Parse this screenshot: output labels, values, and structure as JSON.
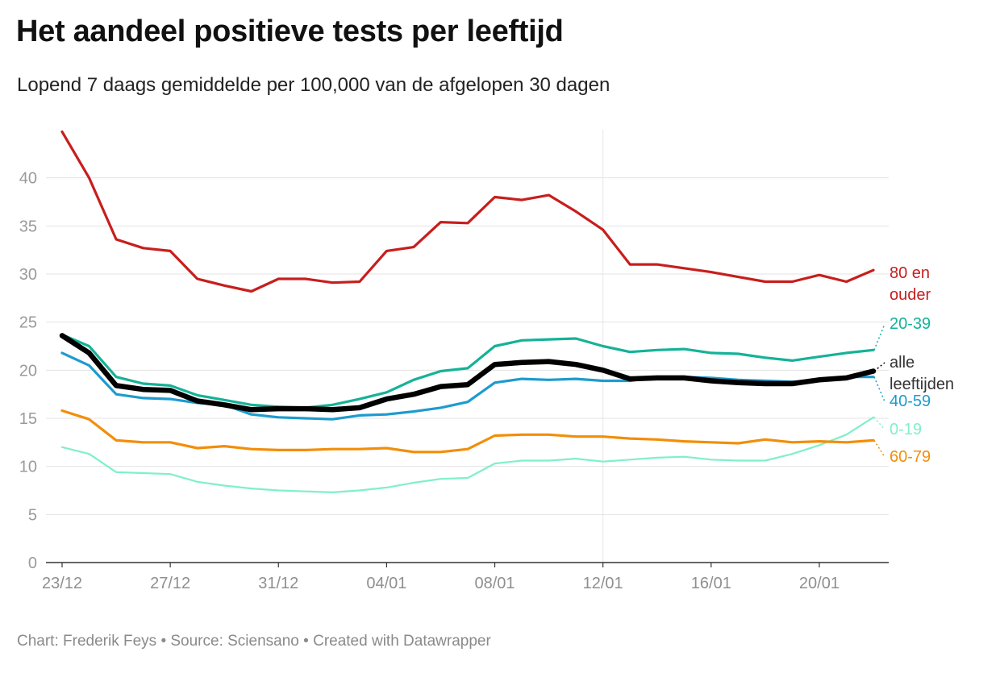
{
  "title": "Het aandeel positieve tests per leeftijd",
  "subtitle": "Lopend 7 daags gemiddelde per 100,000 van de afgelopen 30 dagen",
  "footer": {
    "chart_credit": "Chart: Frederik Feys",
    "source": "Source: Sciensano",
    "created_with": "Created with Datawrapper",
    "separator": "•"
  },
  "chart_data": {
    "type": "line",
    "title": "Het aandeel positieve tests per leeftijd",
    "subtitle": "Lopend 7 daags gemiddelde per 100,000 van de afgelopen 30 dagen",
    "xlabel": "",
    "ylabel": "",
    "ylim": [
      0,
      45
    ],
    "yticks": [
      0,
      5,
      10,
      15,
      20,
      25,
      30,
      35,
      40
    ],
    "grid": true,
    "x_tick_labels": [
      "23/12",
      "27/12",
      "31/12",
      "04/01",
      "08/01",
      "12/01",
      "16/01",
      "20/01"
    ],
    "x_tick_indices": [
      0,
      4,
      8,
      12,
      16,
      20,
      24,
      28
    ],
    "highlight_x_index": 20,
    "x": [
      "23/12",
      "24/12",
      "25/12",
      "26/12",
      "27/12",
      "28/12",
      "29/12",
      "30/12",
      "31/12",
      "01/01",
      "02/01",
      "03/01",
      "04/01",
      "05/01",
      "06/01",
      "07/01",
      "08/01",
      "09/01",
      "10/01",
      "11/01",
      "12/01",
      "13/01",
      "14/01",
      "15/01",
      "16/01",
      "17/01",
      "18/01",
      "19/01",
      "20/01",
      "21/01",
      "22/01"
    ],
    "series": [
      {
        "name": "80 en ouder",
        "color": "#c71e1d",
        "width": 3.2,
        "label_lines": [
          "80 en",
          "ouder"
        ],
        "values": [
          44.8,
          40.0,
          33.6,
          32.7,
          32.4,
          29.5,
          28.8,
          28.2,
          29.5,
          29.5,
          29.1,
          29.2,
          32.4,
          32.8,
          35.4,
          35.3,
          38.0,
          37.7,
          38.2,
          36.5,
          34.6,
          31.0,
          31.0,
          30.6,
          30.2,
          29.7,
          29.2,
          29.2,
          29.9,
          29.2,
          30.4
        ]
      },
      {
        "name": "20-39",
        "color": "#15b298",
        "width": 3.2,
        "label_lines": [
          "20-39"
        ],
        "values": [
          23.7,
          22.5,
          19.3,
          18.6,
          18.4,
          17.4,
          16.9,
          16.4,
          16.2,
          16.1,
          16.4,
          17.0,
          17.7,
          19.0,
          19.9,
          20.2,
          22.5,
          23.1,
          23.2,
          23.3,
          22.5,
          21.9,
          22.1,
          22.2,
          21.8,
          21.7,
          21.3,
          21.0,
          21.4,
          21.8,
          22.1
        ]
      },
      {
        "name": "alle leeftijden",
        "color": "#000000",
        "width": 6.5,
        "label_lines": [
          "alle",
          "leeftijden"
        ],
        "values": [
          23.6,
          21.8,
          18.4,
          18.0,
          17.9,
          16.8,
          16.4,
          15.9,
          16.0,
          16.0,
          15.9,
          16.1,
          17.0,
          17.5,
          18.3,
          18.5,
          20.6,
          20.8,
          20.9,
          20.6,
          20.0,
          19.1,
          19.2,
          19.2,
          18.9,
          18.7,
          18.6,
          18.6,
          19.0,
          19.2,
          19.9
        ]
      },
      {
        "name": "40-59",
        "color": "#1d9bce",
        "width": 3.2,
        "label_lines": [
          "40-59"
        ],
        "values": [
          21.8,
          20.5,
          17.5,
          17.1,
          17.0,
          16.6,
          16.4,
          15.4,
          15.1,
          15.0,
          14.9,
          15.3,
          15.4,
          15.7,
          16.1,
          16.7,
          18.7,
          19.1,
          19.0,
          19.1,
          18.9,
          18.9,
          19.3,
          19.3,
          19.2,
          19.0,
          18.9,
          18.8,
          18.9,
          19.3,
          19.3
        ]
      },
      {
        "name": "0-19",
        "color": "#7ff0c9",
        "width": 2.2,
        "label_lines": [
          "0-19"
        ],
        "values": [
          12.0,
          11.3,
          9.4,
          9.3,
          9.2,
          8.4,
          8.0,
          7.7,
          7.5,
          7.4,
          7.3,
          7.5,
          7.8,
          8.3,
          8.7,
          8.8,
          10.3,
          10.6,
          10.6,
          10.8,
          10.5,
          10.7,
          10.9,
          11.0,
          10.7,
          10.6,
          10.6,
          11.3,
          12.2,
          13.3,
          15.1
        ]
      },
      {
        "name": "60-79",
        "color": "#f28e0a",
        "width": 3.2,
        "label_lines": [
          "60-79"
        ],
        "values": [
          15.8,
          14.9,
          12.7,
          12.5,
          12.5,
          11.9,
          12.1,
          11.8,
          11.7,
          11.7,
          11.8,
          11.8,
          11.9,
          11.5,
          11.5,
          11.8,
          13.2,
          13.3,
          13.3,
          13.1,
          13.1,
          12.9,
          12.8,
          12.6,
          12.5,
          12.4,
          12.8,
          12.5,
          12.6,
          12.5,
          12.7
        ]
      }
    ]
  }
}
